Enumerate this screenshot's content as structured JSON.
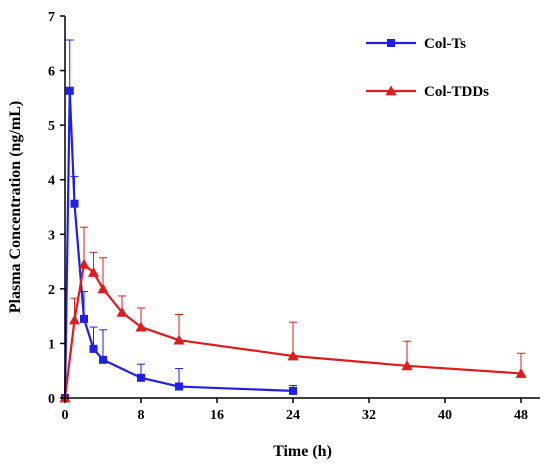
{
  "chart_data": {
    "type": "line",
    "title": "",
    "xlabel": "Time (h)",
    "ylabel": "Plasma Concentration (ng/mL)",
    "xlim": [
      0,
      50
    ],
    "ylim": [
      0,
      7
    ],
    "xticks": [
      0,
      8,
      16,
      24,
      32,
      40,
      48
    ],
    "yticks": [
      0,
      1,
      2,
      3,
      4,
      5,
      6,
      7
    ],
    "grid": false,
    "legend": "top-right",
    "series": [
      {
        "name": "Col-Ts",
        "color": "#1f1fe6",
        "marker": "square",
        "x": [
          0,
          0.5,
          1,
          2,
          3,
          4,
          8,
          12,
          24
        ],
        "y": [
          0,
          5.63,
          3.56,
          1.45,
          0.9,
          0.7,
          0.37,
          0.21,
          0.13
        ],
        "err": [
          0,
          0.93,
          0.5,
          0.5,
          0.4,
          0.55,
          0.25,
          0.33,
          0.1
        ]
      },
      {
        "name": "Col-TDDs",
        "color": "#e01b1b",
        "marker": "triangle",
        "x": [
          0,
          1,
          2,
          3,
          4,
          6,
          8,
          12,
          24,
          36,
          48
        ],
        "y": [
          0,
          1.43,
          2.45,
          2.3,
          2.0,
          1.57,
          1.3,
          1.06,
          0.77,
          0.59,
          0.45
        ],
        "err": [
          0,
          0.4,
          0.68,
          0.37,
          0.57,
          0.3,
          0.35,
          0.47,
          0.62,
          0.45,
          0.37
        ]
      }
    ]
  }
}
